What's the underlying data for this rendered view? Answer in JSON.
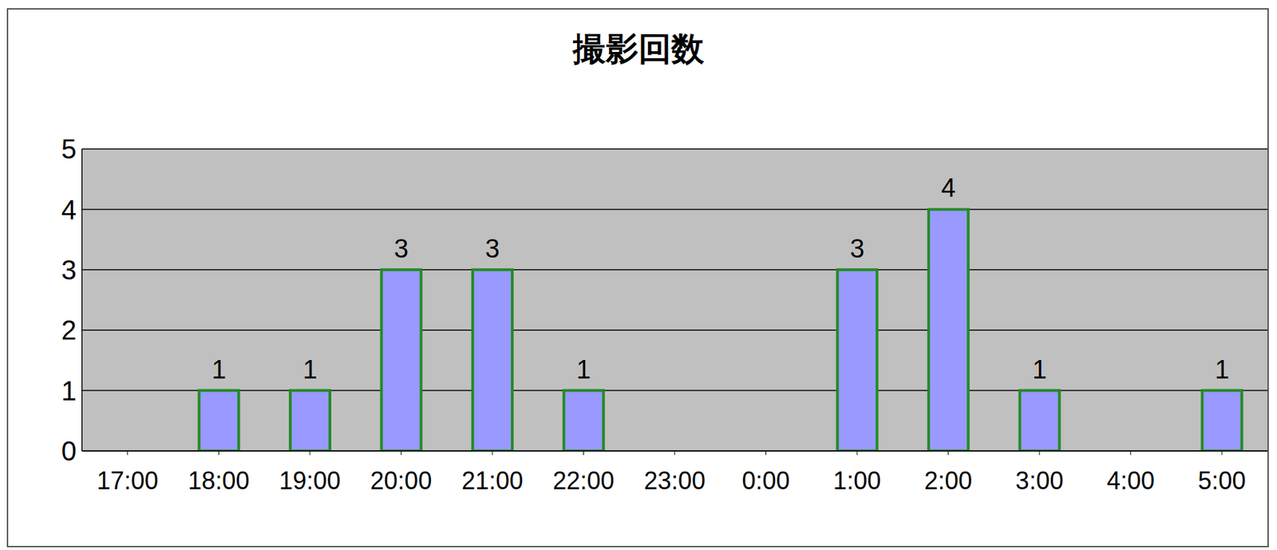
{
  "chart_data": {
    "type": "bar",
    "title": "撮影回数",
    "categories": [
      "17:00",
      "18:00",
      "19:00",
      "20:00",
      "21:00",
      "22:00",
      "23:00",
      "0:00",
      "1:00",
      "2:00",
      "3:00",
      "4:00",
      "5:00"
    ],
    "values": [
      0,
      1,
      1,
      3,
      3,
      1,
      0,
      0,
      3,
      4,
      1,
      0,
      1
    ],
    "color": "#9999ff",
    "ylim": [
      0,
      5
    ],
    "yticks": [
      0,
      1,
      2,
      3,
      4,
      5
    ],
    "grid": true,
    "data_labels": true
  }
}
